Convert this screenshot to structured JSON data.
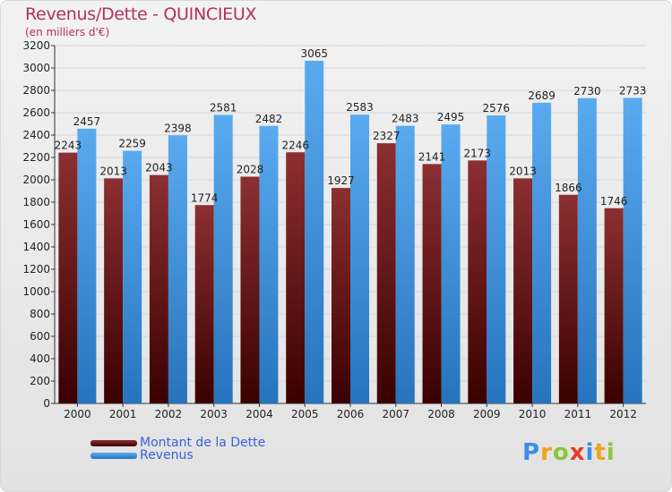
{
  "header": {
    "title": "Revenus/Dette - QUINCIEUX",
    "subtitle": "(en milliers d'€)"
  },
  "legend": {
    "items": [
      {
        "label": "Montant de la Dette",
        "color": "#6b0d0d"
      },
      {
        "label": "Revenus",
        "color": "#3f8fd6"
      }
    ]
  },
  "logo": {
    "text": "Proxiti",
    "letters": [
      {
        "char": "P",
        "color": "#3b8ee8"
      },
      {
        "char": "r",
        "color": "#f0a21c"
      },
      {
        "char": "o",
        "color": "#8cc63f"
      },
      {
        "char": "x",
        "color": "#e53b2c"
      },
      {
        "char": "i",
        "color": "#3b8ee8"
      },
      {
        "char": "t",
        "color": "#f0a21c"
      },
      {
        "char": "i",
        "color": "#8cc63f"
      }
    ]
  },
  "chart_data": {
    "type": "bar",
    "title": "Revenus/Dette - QUINCIEUX",
    "subtitle": "(en milliers d'€)",
    "xlabel": "",
    "ylabel": "",
    "ylim": [
      0,
      3200
    ],
    "ytick_step": 200,
    "grid": true,
    "legend_position": "bottom-left",
    "categories": [
      "2000",
      "2001",
      "2002",
      "2003",
      "2004",
      "2005",
      "2006",
      "2007",
      "2008",
      "2009",
      "2010",
      "2011",
      "2012"
    ],
    "series": [
      {
        "name": "Montant de la Dette",
        "color": "#6b0d0d",
        "values": [
          2243,
          2013,
          2043,
          1774,
          2028,
          2246,
          1927,
          2327,
          2141,
          2173,
          2013,
          1866,
          1746
        ],
        "labels": [
          "2243",
          "2013",
          "2043",
          "1774",
          "2028",
          "2246",
          "1927",
          "2327",
          "2141",
          "2173",
          "2013",
          "1866",
          "1746"
        ]
      },
      {
        "name": "Revenus",
        "color": "#3f8fd6",
        "values": [
          2457,
          2259,
          2398,
          2581,
          2482,
          3065,
          2583,
          2483,
          2495,
          2576,
          2689,
          2730,
          2733
        ],
        "labels": [
          "2457",
          "2259",
          "2398",
          "2581",
          "2482",
          "3065",
          "2583",
          "2483",
          "2495",
          "2576",
          "2689",
          "2730",
          "2733"
        ]
      }
    ]
  }
}
